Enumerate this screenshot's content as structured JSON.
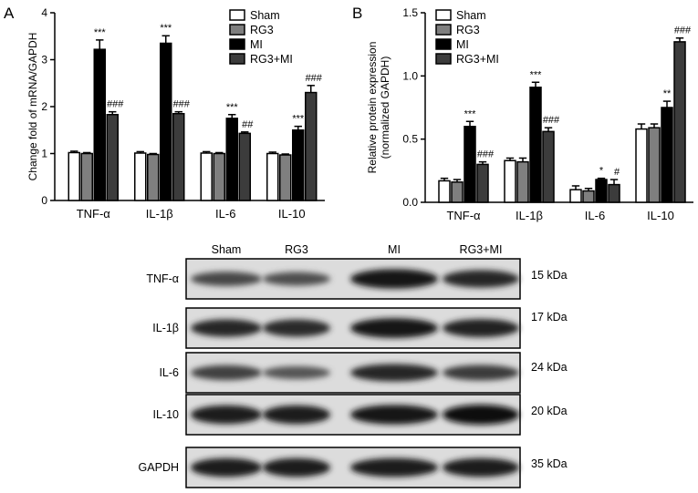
{
  "colors": {
    "sham": "#ffffff",
    "rg3": "#7f7f7f",
    "mi": "#000000",
    "rg3mi": "#3c3c3c"
  },
  "chart_data": [
    {
      "type": "bar",
      "panel": "A",
      "ylabel": "Change fold of mRNA/GAPDH",
      "ylim": [
        0,
        4
      ],
      "yticks": [
        "0",
        "1",
        "2",
        "3",
        "4"
      ],
      "categories": [
        "TNF-α",
        "IL-1β",
        "IL-6",
        "IL-10"
      ],
      "legend": [
        "Sham",
        "RG3",
        "MI",
        "RG3+MI"
      ],
      "legend_position": "top-right",
      "series": [
        {
          "name": "Sham",
          "values": [
            1.02,
            1.01,
            1.01,
            1.0
          ],
          "errors": [
            0.03,
            0.03,
            0.03,
            0.03
          ]
        },
        {
          "name": "RG3",
          "values": [
            1.0,
            0.98,
            1.0,
            0.97
          ],
          "errors": [
            0.02,
            0.02,
            0.02,
            0.02
          ]
        },
        {
          "name": "MI",
          "values": [
            3.22,
            3.35,
            1.75,
            1.5
          ],
          "errors": [
            0.2,
            0.16,
            0.08,
            0.08
          ]
        },
        {
          "name": "RG3+MI",
          "values": [
            1.83,
            1.85,
            1.43,
            2.3
          ],
          "errors": [
            0.06,
            0.04,
            0.03,
            0.15
          ]
        }
      ],
      "annotations": [
        {
          "category": 0,
          "series": 2,
          "text": "***"
        },
        {
          "category": 0,
          "series": 3,
          "text": "###"
        },
        {
          "category": 1,
          "series": 2,
          "text": "***"
        },
        {
          "category": 1,
          "series": 3,
          "text": "###"
        },
        {
          "category": 2,
          "series": 2,
          "text": "***"
        },
        {
          "category": 2,
          "series": 3,
          "text": "##"
        },
        {
          "category": 3,
          "series": 2,
          "text": "***"
        },
        {
          "category": 3,
          "series": 3,
          "text": "###"
        }
      ]
    },
    {
      "type": "bar",
      "panel": "B",
      "ylabel": "Relative protein expression",
      "ylabel2": "(normalized GAPDH)",
      "ylim": [
        0,
        1.5
      ],
      "yticks": [
        "0.0",
        "0.5",
        "1.0",
        "1.5"
      ],
      "categories": [
        "TNF-α",
        "IL-1β",
        "IL-6",
        "IL-10"
      ],
      "legend": [
        "Sham",
        "RG3",
        "MI",
        "RG3+MI"
      ],
      "legend_position": "top-left",
      "series": [
        {
          "name": "Sham",
          "values": [
            0.17,
            0.33,
            0.1,
            0.58
          ],
          "errors": [
            0.02,
            0.02,
            0.03,
            0.04
          ]
        },
        {
          "name": "RG3",
          "values": [
            0.16,
            0.32,
            0.09,
            0.59
          ],
          "errors": [
            0.02,
            0.03,
            0.02,
            0.03
          ]
        },
        {
          "name": "MI",
          "values": [
            0.6,
            0.91,
            0.18,
            0.75
          ],
          "errors": [
            0.04,
            0.04,
            0.01,
            0.05
          ]
        },
        {
          "name": "RG3+MI",
          "values": [
            0.3,
            0.56,
            0.14,
            1.27
          ],
          "errors": [
            0.02,
            0.03,
            0.04,
            0.03
          ]
        }
      ],
      "annotations": [
        {
          "category": 0,
          "series": 2,
          "text": "***"
        },
        {
          "category": 0,
          "series": 3,
          "text": "###"
        },
        {
          "category": 1,
          "series": 2,
          "text": "***"
        },
        {
          "category": 1,
          "series": 3,
          "text": "###"
        },
        {
          "category": 2,
          "series": 2,
          "text": "*"
        },
        {
          "category": 2,
          "series": 3,
          "text": "#"
        },
        {
          "category": 3,
          "series": 2,
          "text": "**"
        },
        {
          "category": 3,
          "series": 3,
          "text": "###"
        }
      ]
    }
  ],
  "panel_a_letter": "A",
  "panel_b_letter": "B",
  "blot": {
    "lanes": [
      "Sham",
      "RG3",
      "MI",
      "RG3+MI"
    ],
    "rows": [
      {
        "protein": "TNF-α",
        "kda": "15 kDa",
        "intensity": [
          0.55,
          0.5,
          0.95,
          0.8
        ]
      },
      {
        "protein": "IL-1β",
        "kda": "17 kDa",
        "intensity": [
          0.8,
          0.78,
          0.98,
          0.85
        ]
      },
      {
        "protein": "IL-6",
        "kda": "24 kDa",
        "intensity": [
          0.6,
          0.45,
          0.8,
          0.65
        ]
      },
      {
        "protein": "IL-10",
        "kda": "20 kDa",
        "intensity": [
          0.9,
          0.9,
          0.95,
          1.0
        ]
      },
      {
        "protein": "GAPDH",
        "kda": "35 kDa",
        "intensity": [
          0.9,
          0.9,
          0.9,
          0.9
        ]
      }
    ]
  }
}
